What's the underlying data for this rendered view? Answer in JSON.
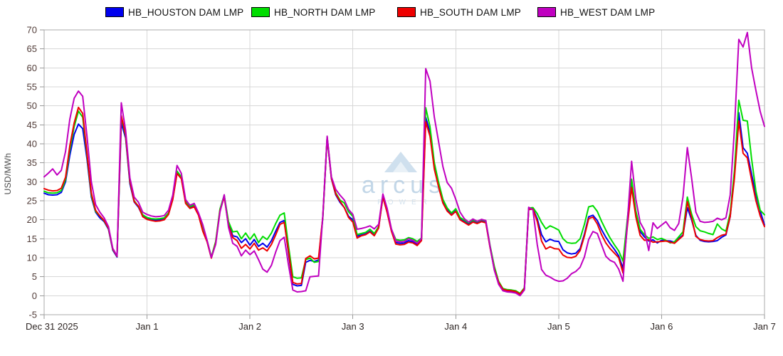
{
  "chart_data": {
    "type": "line",
    "title": "",
    "ylabel": "USD/MWh",
    "ylim": [
      -5,
      70
    ],
    "y_ticks": [
      -5,
      0,
      5,
      10,
      15,
      20,
      25,
      30,
      35,
      40,
      45,
      50,
      55,
      60,
      65,
      70
    ],
    "x_tick_labels": [
      "Dec 31 2025",
      "Jan 1",
      "Jan 2",
      "Jan 3",
      "Jan 4",
      "Jan 5",
      "Jan 6",
      "Jan 7"
    ],
    "x_resolution": "hourly",
    "points_per_day": 24,
    "grid": true,
    "legend_position": "top",
    "watermark": {
      "brand": "arcus",
      "sub": "POWER"
    },
    "colors": {
      "houston": "#0000EE",
      "north": "#00DD00",
      "south": "#EE0000",
      "west": "#C000C0",
      "grid": "#d7d7d7",
      "frame": "#ababab",
      "tick": "#9a9a9a"
    },
    "series": [
      {
        "name": "HB_HOUSTON DAM LMP",
        "color": "#0000EE",
        "values": [
          27.0,
          26.6,
          26.5,
          26.6,
          27.2,
          30.0,
          37.0,
          42.5,
          45.2,
          44.0,
          36.0,
          26.0,
          22.0,
          20.5,
          19.5,
          17.5,
          12.0,
          10.2,
          45.5,
          41.5,
          29.5,
          24.7,
          23.3,
          21.0,
          20.3,
          20.0,
          19.9,
          20.0,
          20.2,
          21.5,
          25.5,
          32.4,
          31.0,
          24.5,
          23.2,
          23.6,
          21.3,
          17.2,
          14.4,
          10.0,
          14.0,
          22.5,
          26.2,
          19.0,
          15.8,
          15.5,
          14.0,
          15.0,
          13.3,
          14.8,
          13.0,
          13.8,
          12.8,
          14.5,
          17.0,
          19.3,
          19.8,
          11.0,
          3.0,
          2.6,
          2.7,
          8.8,
          9.3,
          9.0,
          9.4,
          20.5,
          41.6,
          30.8,
          26.6,
          24.6,
          23.2,
          20.9,
          20.0,
          15.7,
          16.0,
          16.3,
          17.0,
          16.0,
          18.0,
          26.0,
          22.0,
          17.2,
          14.0,
          13.8,
          13.9,
          14.5,
          14.2,
          13.5,
          14.8,
          47.0,
          43.0,
          34.0,
          29.0,
          24.8,
          22.6,
          21.3,
          22.4,
          20.2,
          19.6,
          18.9,
          19.6,
          19.2,
          19.7,
          19.4,
          12.8,
          6.8,
          3.2,
          1.6,
          1.3,
          1.2,
          1.0,
          0.3,
          1.8,
          22.8,
          22.9,
          20.3,
          16.1,
          14.2,
          14.9,
          14.4,
          14.3,
          12.1,
          11.3,
          11.0,
          11.2,
          12.4,
          16.2,
          20.8,
          21.2,
          19.8,
          17.4,
          15.4,
          13.7,
          12.2,
          10.5,
          7.2,
          19.0,
          30.2,
          21.6,
          16.9,
          15.5,
          14.4,
          14.7,
          13.9,
          14.6,
          14.5,
          14.4,
          14.1,
          15.0,
          16.0,
          23.2,
          20.0,
          15.9,
          14.6,
          14.3,
          14.2,
          14.3,
          14.5,
          15.4,
          16.0,
          20.8,
          32.0,
          48.2,
          39.0,
          37.5,
          32.0,
          26.5,
          22.3,
          18.6
        ]
      },
      {
        "name": "HB_NORTH DAM LMP",
        "color": "#00DD00",
        "values": [
          27.5,
          27.1,
          27.0,
          27.1,
          27.7,
          30.6,
          38.5,
          44.5,
          48.6,
          47.0,
          37.0,
          26.5,
          22.2,
          21.0,
          19.7,
          17.7,
          12.2,
          10.4,
          47.0,
          42.0,
          30.0,
          25.0,
          23.5,
          21.3,
          20.6,
          20.3,
          20.2,
          20.3,
          20.5,
          21.8,
          25.8,
          32.8,
          31.3,
          24.8,
          23.5,
          23.9,
          21.6,
          17.4,
          14.6,
          10.2,
          14.3,
          22.8,
          26.5,
          19.5,
          16.8,
          17.0,
          15.0,
          16.5,
          14.8,
          16.3,
          14.0,
          15.6,
          14.8,
          16.5,
          19.0,
          21.2,
          21.8,
          13.0,
          5.0,
          4.6,
          4.7,
          9.5,
          9.9,
          8.8,
          9.0,
          20.5,
          41.8,
          31.0,
          27.1,
          25.2,
          24.4,
          22.1,
          20.9,
          16.1,
          16.4,
          16.7,
          17.5,
          16.4,
          18.2,
          26.3,
          22.3,
          17.5,
          14.8,
          14.6,
          14.7,
          15.3,
          15.0,
          14.3,
          15.2,
          49.5,
          44.5,
          35.0,
          29.8,
          25.4,
          23.1,
          21.8,
          22.9,
          20.6,
          19.9,
          19.2,
          19.9,
          19.5,
          20.0,
          19.7,
          13.2,
          7.7,
          3.8,
          1.9,
          1.6,
          1.5,
          1.3,
          0.6,
          2.1,
          23.1,
          23.2,
          21.6,
          19.3,
          17.6,
          18.4,
          17.9,
          17.3,
          15.0,
          14.0,
          13.8,
          13.9,
          15.0,
          18.8,
          23.4,
          23.7,
          22.2,
          19.6,
          17.3,
          15.2,
          13.4,
          11.8,
          9.1,
          20.0,
          30.7,
          22.3,
          17.5,
          16.1,
          15.1,
          15.5,
          14.8,
          15.1,
          14.6,
          13.9,
          14.2,
          15.5,
          16.8,
          26.0,
          21.5,
          18.2,
          17.1,
          16.8,
          16.4,
          16.1,
          18.9,
          17.6,
          17.0,
          21.8,
          33.0,
          51.5,
          46.2,
          46.0,
          36.0,
          27.5,
          22.5,
          21.3
        ]
      },
      {
        "name": "HB_SOUTH DAM LMP",
        "color": "#EE0000",
        "values": [
          28.2,
          27.8,
          27.6,
          27.7,
          28.3,
          31.2,
          39.5,
          45.5,
          49.6,
          48.0,
          37.5,
          27.0,
          22.5,
          21.0,
          19.8,
          17.8,
          12.3,
          10.4,
          47.4,
          42.3,
          30.2,
          24.8,
          23.6,
          20.8,
          20.1,
          19.8,
          19.6,
          19.7,
          20.0,
          21.4,
          25.3,
          32.2,
          30.8,
          24.3,
          23.0,
          23.4,
          21.2,
          17.0,
          14.2,
          9.9,
          13.8,
          22.3,
          26.0,
          18.5,
          15.3,
          14.5,
          12.5,
          13.5,
          12.3,
          13.8,
          12.0,
          12.6,
          11.8,
          13.5,
          16.0,
          18.8,
          19.3,
          11.5,
          3.5,
          3.1,
          3.2,
          9.8,
          10.5,
          9.7,
          9.9,
          20.8,
          41.7,
          30.9,
          26.8,
          24.9,
          23.2,
          20.6,
          19.4,
          15.2,
          15.8,
          16.1,
          16.8,
          15.8,
          17.8,
          26.0,
          21.9,
          17.0,
          13.6,
          13.4,
          13.5,
          14.1,
          13.9,
          13.2,
          14.5,
          45.8,
          42.0,
          33.3,
          28.6,
          24.4,
          22.3,
          21.2,
          22.2,
          20.0,
          19.3,
          18.6,
          19.4,
          19.0,
          19.5,
          19.2,
          12.6,
          7.0,
          3.5,
          1.7,
          1.4,
          1.3,
          1.1,
          0.4,
          1.9,
          22.7,
          22.8,
          19.6,
          14.4,
          12.3,
          12.9,
          12.4,
          12.3,
          10.7,
          10.1,
          10.0,
          10.4,
          11.9,
          15.7,
          20.3,
          20.7,
          18.9,
          16.1,
          13.9,
          12.4,
          11.2,
          10.0,
          6.0,
          18.0,
          28.5,
          20.7,
          15.9,
          14.6,
          14.7,
          14.1,
          14.2,
          14.3,
          14.4,
          14.1,
          13.8,
          14.8,
          15.8,
          24.8,
          20.5,
          15.6,
          14.8,
          14.5,
          14.4,
          14.5,
          15.3,
          15.9,
          16.2,
          20.9,
          31.0,
          46.0,
          37.5,
          36.3,
          30.5,
          25.0,
          21.0,
          18.2
        ]
      },
      {
        "name": "HB_WEST DAM LMP",
        "color": "#C000C0",
        "values": [
          31.3,
          32.3,
          33.4,
          31.8,
          33.0,
          38.0,
          46.5,
          52.0,
          53.9,
          52.5,
          42.0,
          30.0,
          24.0,
          22.0,
          20.5,
          18.2,
          12.5,
          10.5,
          50.8,
          43.5,
          31.0,
          26.0,
          24.6,
          22.0,
          21.4,
          21.0,
          20.8,
          20.9,
          21.1,
          22.5,
          26.5,
          34.3,
          32.2,
          25.3,
          23.8,
          24.3,
          21.8,
          18.7,
          14.6,
          10.1,
          13.5,
          22.0,
          26.6,
          18.0,
          13.8,
          13.0,
          10.5,
          12.0,
          10.8,
          11.8,
          9.5,
          7.0,
          6.2,
          8.0,
          11.5,
          14.5,
          15.4,
          8.0,
          1.5,
          1.0,
          1.1,
          1.3,
          5.0,
          5.1,
          5.2,
          21.0,
          42.0,
          31.3,
          28.0,
          26.5,
          25.2,
          22.7,
          21.4,
          17.5,
          17.7,
          18.0,
          18.4,
          17.6,
          18.8,
          26.8,
          23.0,
          17.6,
          14.4,
          14.2,
          14.3,
          15.0,
          14.6,
          13.8,
          15.0,
          59.8,
          56.5,
          47.0,
          40.5,
          34.0,
          29.8,
          28.3,
          25.4,
          22.0,
          20.3,
          19.4,
          20.2,
          19.6,
          20.1,
          19.8,
          12.9,
          6.7,
          3.0,
          1.3,
          1.0,
          0.9,
          0.7,
          0.0,
          1.5,
          23.3,
          22.6,
          13.5,
          6.9,
          5.4,
          4.9,
          4.2,
          3.8,
          3.9,
          4.6,
          5.8,
          6.4,
          7.5,
          10.2,
          14.8,
          16.9,
          16.4,
          13.4,
          10.4,
          9.3,
          8.8,
          7.0,
          3.8,
          19.0,
          35.4,
          25.4,
          19.3,
          17.3,
          11.9,
          19.2,
          17.7,
          18.6,
          19.5,
          17.9,
          17.2,
          19.0,
          26.0,
          39.0,
          31.0,
          22.0,
          19.6,
          19.3,
          19.4,
          19.6,
          20.4,
          20.0,
          20.5,
          26.5,
          44.0,
          67.5,
          65.5,
          69.3,
          60.0,
          54.0,
          48.5,
          44.6
        ]
      }
    ]
  }
}
